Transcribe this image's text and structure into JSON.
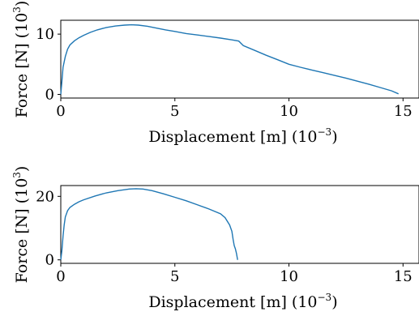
{
  "chart_data": [
    {
      "type": "line",
      "xlabel": "Displacement [m]",
      "xlabel_scale": "(10",
      "xlabel_scale_exp": "−3",
      "xlabel_scale_close": ")",
      "ylabel": "Force [N]",
      "ylabel_scale": "(10",
      "ylabel_scale_exp": "3",
      "ylabel_scale_close": ")",
      "xlim": [
        0,
        15.7
      ],
      "ylim": [
        -0.6,
        12.3
      ],
      "xticks": [
        0,
        5,
        10,
        15
      ],
      "xtick_labels": [
        "0",
        "5",
        "10",
        "15"
      ],
      "yticks": [
        0,
        10
      ],
      "ytick_labels": [
        "0",
        "10"
      ],
      "series": [
        {
          "color": "#1f77b4",
          "x": [
            0.0,
            0.05,
            0.1,
            0.2,
            0.3,
            0.4,
            0.6,
            0.8,
            1.0,
            1.3,
            1.6,
            2.0,
            2.4,
            2.8,
            3.1,
            3.4,
            3.8,
            4.2,
            4.6,
            5.0,
            5.5,
            6.0,
            6.5,
            7.0,
            7.5,
            7.8,
            8.0,
            8.5,
            9.0,
            9.5,
            10.0,
            10.5,
            11.0,
            11.5,
            12.0,
            12.5,
            13.0,
            13.5,
            14.0,
            14.5,
            14.8
          ],
          "y": [
            0.0,
            2.2,
            4.5,
            6.3,
            7.5,
            8.2,
            8.9,
            9.4,
            9.8,
            10.3,
            10.7,
            11.1,
            11.35,
            11.5,
            11.55,
            11.5,
            11.3,
            11.0,
            10.7,
            10.45,
            10.1,
            9.85,
            9.6,
            9.35,
            9.05,
            8.85,
            8.1,
            7.3,
            6.5,
            5.75,
            5.0,
            4.5,
            4.05,
            3.6,
            3.15,
            2.7,
            2.2,
            1.7,
            1.15,
            0.6,
            0.1
          ]
        }
      ]
    },
    {
      "type": "line",
      "xlabel": "Displacement [m]",
      "xlabel_scale": "(10",
      "xlabel_scale_exp": "−3",
      "xlabel_scale_close": ")",
      "ylabel": "Force [N]",
      "ylabel_scale": "(10",
      "ylabel_scale_exp": "3",
      "ylabel_scale_close": ")",
      "xlim": [
        0,
        15.7
      ],
      "ylim": [
        -1.1,
        23.4
      ],
      "xticks": [
        0,
        5,
        10,
        15
      ],
      "xtick_labels": [
        "0",
        "5",
        "10",
        "15"
      ],
      "yticks": [
        0,
        20
      ],
      "ytick_labels": [
        "0",
        "20"
      ],
      "series": [
        {
          "color": "#1f77b4",
          "x": [
            0.0,
            0.05,
            0.1,
            0.15,
            0.2,
            0.3,
            0.4,
            0.6,
            0.8,
            1.0,
            1.5,
            2.0,
            2.5,
            3.0,
            3.3,
            3.6,
            4.0,
            4.5,
            5.0,
            5.5,
            6.0,
            6.5,
            7.0,
            7.2,
            7.4,
            7.5,
            7.55,
            7.6,
            7.65,
            7.7,
            7.75
          ],
          "y": [
            0.0,
            3.0,
            7.5,
            11.0,
            13.5,
            15.5,
            16.5,
            17.5,
            18.3,
            18.9,
            20.1,
            21.1,
            21.8,
            22.3,
            22.4,
            22.3,
            21.8,
            20.8,
            19.7,
            18.6,
            17.3,
            16.0,
            14.5,
            13.3,
            11.0,
            9.0,
            6.5,
            4.5,
            3.5,
            2.0,
            0.0
          ]
        }
      ]
    }
  ]
}
